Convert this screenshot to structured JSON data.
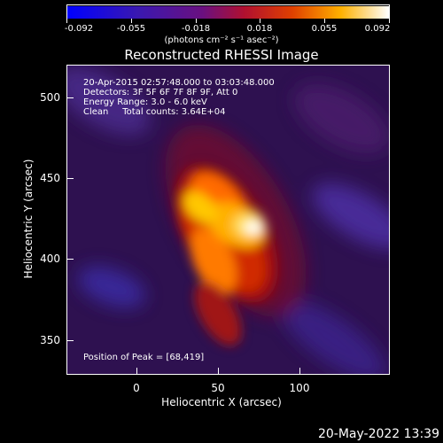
{
  "colorbar": {
    "ticks": [
      "-0.092",
      "-0.055",
      "-0.018",
      "0.018",
      "0.055",
      "0.092"
    ],
    "unit": "(photons cm⁻² s⁻¹ asec⁻²)"
  },
  "title": "Reconstructed RHESSI Image",
  "info": {
    "line1": "20-Apr-2015 02:57:48.000 to 03:03:48.000",
    "line2": "Detectors: 3F 5F 6F 7F 8F 9F, Att 0",
    "line3": "Energy Range: 3.0 - 6.0 keV",
    "line4": "Clean     Total counts: 3.64E+04"
  },
  "peak": "Position of Peak = [68,419]",
  "axes": {
    "xlabel": "Heliocentric X (arcsec)",
    "ylabel": "Heliocentric Y (arcsec)",
    "xticks": [
      "0",
      "50",
      "100"
    ],
    "yticks": [
      "500",
      "450",
      "400",
      "350"
    ]
  },
  "datestamp": "20-May-2022 13:39",
  "colors": {
    "cmap": [
      "#0000ff",
      "#4b0082",
      "#8b1a6b",
      "#d01010",
      "#ff6a00",
      "#ffd000",
      "#ffffff"
    ]
  }
}
